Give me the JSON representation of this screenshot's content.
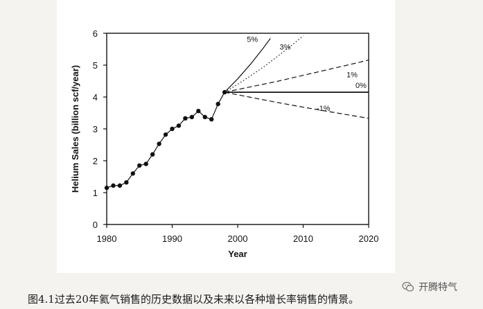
{
  "chart_data": {
    "type": "line",
    "xlabel": "Year",
    "ylabel": "Helium Sales (billion scf/year)",
    "xlim": [
      1980,
      2020
    ],
    "ylim": [
      0,
      6
    ],
    "xticks": [
      1980,
      1990,
      2000,
      2010,
      2020
    ],
    "yticks": [
      0,
      1,
      2,
      3,
      4,
      5,
      6
    ],
    "grid": false,
    "historical": {
      "x": [
        1980,
        1981,
        1982,
        1983,
        1984,
        1985,
        1986,
        1987,
        1988,
        1989,
        1990,
        1991,
        1992,
        1993,
        1994,
        1995,
        1996,
        1997,
        1998
      ],
      "y": [
        1.15,
        1.22,
        1.22,
        1.32,
        1.6,
        1.85,
        1.9,
        2.2,
        2.53,
        2.82,
        3.0,
        3.1,
        3.33,
        3.37,
        3.56,
        3.37,
        3.3,
        3.78,
        4.15
      ]
    },
    "projections": [
      {
        "label": "5%",
        "style": "solid",
        "x": [
          1998,
          2000,
          2002,
          2004,
          2005
        ],
        "y": [
          4.15,
          4.57,
          5.04,
          5.56,
          5.84
        ]
      },
      {
        "label": "3%",
        "style": "dotted",
        "x": [
          1998,
          2000,
          2002,
          2004,
          2006,
          2008,
          2010
        ],
        "y": [
          4.15,
          4.4,
          4.67,
          4.95,
          5.26,
          5.58,
          5.92
        ]
      },
      {
        "label": "1%",
        "style": "dashed",
        "x": [
          1998,
          2002,
          2006,
          2010,
          2014,
          2018,
          2020
        ],
        "y": [
          4.15,
          4.32,
          4.49,
          4.68,
          4.87,
          5.06,
          5.16
        ]
      },
      {
        "label": "0%",
        "style": "solid",
        "x": [
          1998,
          2020
        ],
        "y": [
          4.15,
          4.15
        ]
      },
      {
        "label": "-1%",
        "style": "dashed",
        "x": [
          1998,
          2002,
          2006,
          2010,
          2014,
          2018,
          2020
        ],
        "y": [
          4.15,
          3.99,
          3.83,
          3.68,
          3.54,
          3.4,
          3.33
        ]
      }
    ]
  },
  "caption": "图4.1过去20年氦气销售的历史数据以及未来以各种增长率销售的情景。",
  "watermark": {
    "text": "开腾特气",
    "icon": "wechat-icon"
  }
}
